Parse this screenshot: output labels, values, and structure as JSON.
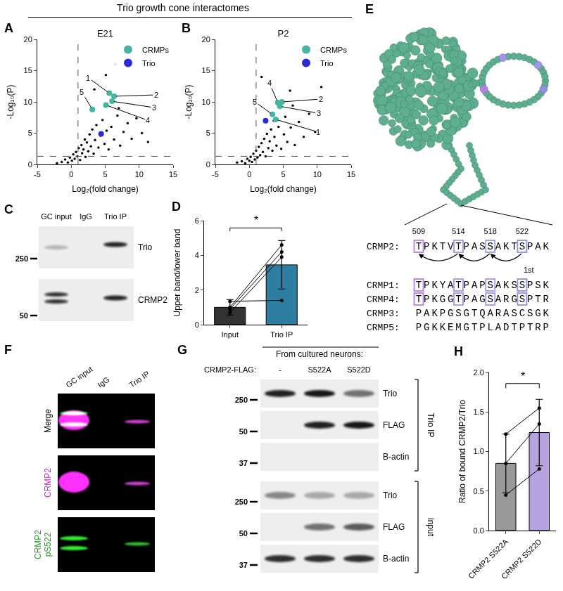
{
  "header": "Trio growth cone interactomes",
  "chart_data": [
    {
      "panel": "A",
      "type": "scatter",
      "title": "E21",
      "x_label": "Log₂(fold change)",
      "y_label": "-Log₁₀(P)",
      "xlim": [
        -5,
        15
      ],
      "xticks": [
        -5,
        0,
        5,
        10,
        15
      ],
      "ylim": [
        0,
        20
      ],
      "yticks": [
        0,
        5,
        10,
        15,
        20
      ],
      "grid": false,
      "legend": "top right",
      "thresholds": {
        "x": 1,
        "y": 1.3
      },
      "series": [
        {
          "color": "#000000",
          "x": [
            -2.1,
            -1.4,
            -0.9,
            -0.5,
            -0.2,
            0.1,
            0.3,
            0.5,
            0.7,
            0.9,
            1.1,
            1.3,
            1.5,
            1.6,
            1.8,
            2.0,
            2.1,
            2.3,
            2.5,
            2.7,
            2.9,
            3.1,
            3.3,
            3.5,
            3.7,
            4.0,
            4.3,
            4.6,
            4.9,
            5.2,
            5.5,
            5.9,
            6.3,
            6.8,
            7.2,
            7.7,
            8.3,
            8.9,
            9.6,
            10.4,
            11.3,
            3.4,
            5.1,
            7.0,
            6.5
          ],
          "values": [
            0.2,
            0.4,
            0.8,
            0.3,
            1.1,
            0.6,
            1.6,
            0.9,
            2.0,
            1.3,
            2.6,
            0.7,
            3.1,
            1.8,
            2.4,
            4.0,
            1.2,
            3.5,
            2.1,
            4.8,
            2.9,
            5.6,
            1.7,
            3.9,
            6.3,
            2.7,
            4.6,
            7.1,
            3.3,
            5.4,
            2.4,
            6.0,
            4.0,
            7.8,
            3.0,
            5.2,
            6.6,
            4.1,
            7.4,
            5.0,
            3.6,
            12.0,
            14.3,
            9.0,
            16.0
          ]
        },
        {
          "name": "CRMPs",
          "color": "#45b5a0",
          "x": [
            5.6,
            6.3,
            6.0,
            5.1,
            3.1
          ],
          "values": [
            11.4,
            10.9,
            10.1,
            9.5,
            8.8
          ],
          "point_labels": [
            "1",
            "2",
            "3",
            "4",
            "5"
          ]
        },
        {
          "name": "Trio",
          "color": "#2a2ad8",
          "x": [
            4.4
          ],
          "values": [
            4.9
          ]
        }
      ]
    },
    {
      "panel": "B",
      "type": "scatter",
      "title": "P2",
      "x_label": "Log₂(fold change)",
      "y_label": "-Log₁₀(P)",
      "xlim": [
        -5,
        15
      ],
      "xticks": [
        -5,
        0,
        5,
        10,
        15
      ],
      "ylim": [
        0,
        20
      ],
      "yticks": [
        0,
        5,
        10,
        15,
        20
      ],
      "grid": false,
      "legend": "top right",
      "thresholds": {
        "x": 1,
        "y": 1.3
      },
      "series": [
        {
          "color": "#000000",
          "x": [
            -1.8,
            -1.1,
            -0.6,
            -0.3,
            0.0,
            0.2,
            0.4,
            0.6,
            0.8,
            1.0,
            1.2,
            1.4,
            1.6,
            1.8,
            2.0,
            2.2,
            2.4,
            2.6,
            2.8,
            3.0,
            3.2,
            3.4,
            3.7,
            4.0,
            4.3,
            4.7,
            5.1,
            5.6,
            6.1,
            6.7,
            7.3,
            8.0,
            8.8,
            9.7,
            10.6,
            1.8,
            6.0,
            6.4,
            3.6,
            5.3
          ],
          "values": [
            0.3,
            0.5,
            0.2,
            0.9,
            0.6,
            1.2,
            0.4,
            1.7,
            0.8,
            2.2,
            1.1,
            2.8,
            1.5,
            3.4,
            2.0,
            4.1,
            1.3,
            4.9,
            2.6,
            3.7,
            5.6,
            2.2,
            4.4,
            3.0,
            6.0,
            2.5,
            4.8,
            3.6,
            5.9,
            3.1,
            6.8,
            4.4,
            8.1,
            5.2,
            12.4,
            14.0,
            11.8,
            9.4,
            7.0,
            7.6
          ]
        },
        {
          "name": "CRMPs",
          "color": "#45b5a0",
          "x": [
            3.9,
            4.8,
            4.5,
            4.2,
            3.4
          ],
          "values": [
            7.2,
            10.0,
            9.3,
            9.9,
            8.0
          ],
          "point_labels": [
            "1",
            "2",
            "3",
            "4",
            "5"
          ]
        },
        {
          "name": "Trio",
          "color": "#2a2ad8",
          "x": [
            2.4
          ],
          "values": [
            7.0
          ]
        }
      ]
    },
    {
      "panel": "D",
      "type": "bar",
      "categories": [
        "Input",
        "Trio IP"
      ],
      "values": [
        1.0,
        3.45
      ],
      "errors": [
        0.45,
        1.4
      ],
      "colors": [
        "#333333",
        "#2e7ea1"
      ],
      "y_label": "Upper band/lower band",
      "ylim": [
        0,
        6
      ],
      "yticks": [
        0,
        2,
        4,
        6
      ],
      "grid": false,
      "pairs": [
        [
          1.35,
          1.4
        ],
        [
          1.0,
          4.6
        ],
        [
          0.7,
          3.9
        ],
        [
          0.9,
          4.2
        ]
      ],
      "significance": "*"
    },
    {
      "panel": "H",
      "type": "bar",
      "categories": [
        "CRMP2 S522A",
        "CRMP2 S522D"
      ],
      "values": [
        0.85,
        1.24
      ],
      "errors": [
        0.37,
        0.42
      ],
      "colors": [
        "#999999",
        "#b7a2e0"
      ],
      "y_label": "Ratio of bound CRMP2/Trio",
      "ylim": [
        0,
        2
      ],
      "yticks": [
        {
          "value": 0,
          "label": "0.0"
        },
        0.5,
        {
          "value": 1,
          "label": "1.0"
        },
        1.5,
        {
          "value": 2,
          "label": "2.0"
        }
      ],
      "grid": false,
      "pairs": [
        [
          1.22,
          1.55
        ],
        [
          0.85,
          1.35
        ],
        [
          0.45,
          0.78
        ]
      ],
      "significance": "*"
    }
  ],
  "blot_C": {
    "panel": "C",
    "lanes": [
      "GC input",
      "IgG",
      "Trio IP"
    ],
    "rows": [
      {
        "label": "Trio",
        "marker": 250
      },
      {
        "label": "CRMP2",
        "marker": 50
      }
    ]
  },
  "structure_E": {
    "panel": "E",
    "positions": [
      509,
      514,
      518,
      522
    ],
    "colors": [
      "#b57ee6",
      "#a695e6",
      "#9c9be8",
      "#8f8fe6"
    ],
    "first_label": "1st",
    "rows": [
      {
        "name": "CRMP2:",
        "sequence": "TPKTVTPASSAKTSPAK",
        "boxed": true
      },
      {
        "name": "CRMP1:",
        "sequence": "TPKYATPAPSAKSSPSK",
        "boxed": true
      },
      {
        "name": "CRMP4:",
        "sequence": "TPKGGTPAGSARGSPTR",
        "boxed": true
      },
      {
        "name": "CRMP3:",
        "sequence": "PAKPGSGTQARASCSGK",
        "boxed": false
      },
      {
        "name": "CRMP5:",
        "sequence": "PGKKEMGTPLADTPTRP",
        "boxed": false
      }
    ]
  },
  "blot_F": {
    "panel": "F",
    "lanes": [
      "GC input",
      "IgG",
      "Trio IP"
    ],
    "rows": [
      {
        "label": "Merge",
        "color": "#000000"
      },
      {
        "label": "CRMP2",
        "color": "#cc22cc"
      },
      {
        "label": "CRMP2 pS522",
        "color": "#22a022"
      }
    ]
  },
  "blot_G": {
    "panel": "G",
    "title": "From cultured neurons:",
    "lane_title": "CRMP2-FLAG:",
    "lanes": [
      "-",
      "S522A",
      "S522D"
    ],
    "groups": [
      {
        "label": "Trio IP",
        "rows": [
          {
            "label": "Trio",
            "marker": 250
          },
          {
            "label": "FLAG",
            "marker": 50
          },
          {
            "label": "B-actin",
            "marker": 37
          }
        ]
      },
      {
        "label": "input",
        "rows": [
          {
            "label": "Trio",
            "marker": 250
          },
          {
            "label": "FLAG",
            "marker": 50
          },
          {
            "label": "B-actin",
            "marker": 37
          }
        ]
      }
    ]
  }
}
